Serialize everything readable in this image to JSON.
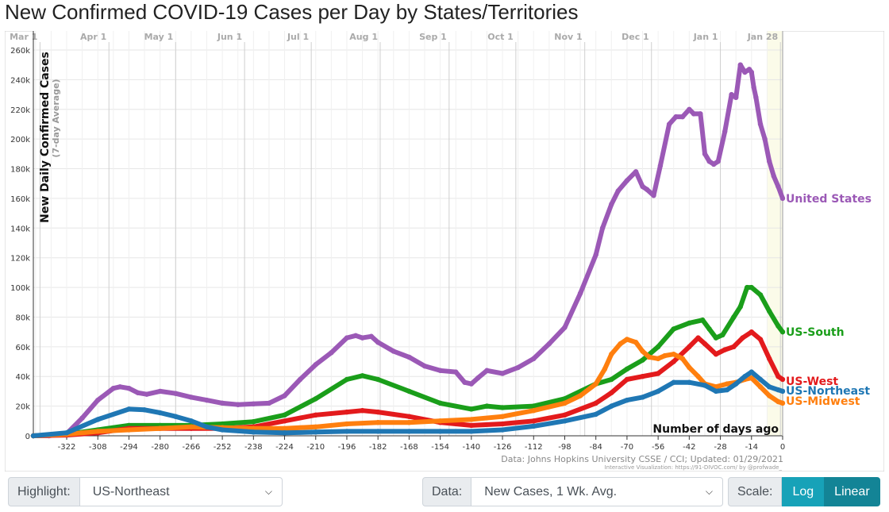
{
  "title": "New Confirmed COVID-19 Cases per Day by States/Territories",
  "chart_data": {
    "type": "line",
    "ylabel": "New Daily Confirmed Cases",
    "ylabel_sub": "(7-day Average)",
    "xlabel": "Number of days ago",
    "xlim": [
      -337,
      0
    ],
    "ylim": [
      0,
      260000
    ],
    "grid": true,
    "yticks": [
      0,
      20000,
      40000,
      60000,
      80000,
      100000,
      120000,
      140000,
      160000,
      180000,
      200000,
      220000,
      240000,
      260000
    ],
    "ytick_labels": [
      "0",
      "20k",
      "40k",
      "60k",
      "80k",
      "100k",
      "120k",
      "140k",
      "160k",
      "180k",
      "200k",
      "220k",
      "240k",
      "260k"
    ],
    "xticks": [
      -322,
      -308,
      -294,
      -280,
      -266,
      -252,
      -238,
      -224,
      -210,
      -196,
      -182,
      -168,
      -154,
      -140,
      -126,
      -112,
      -98,
      -84,
      -70,
      -56,
      -42,
      -28,
      -14,
      0
    ],
    "date_markers": [
      {
        "label": "Mar 1",
        "day": -334
      },
      {
        "label": "Apr 1",
        "day": -303
      },
      {
        "label": "May 1",
        "day": -273
      },
      {
        "label": "Jun 1",
        "day": -242
      },
      {
        "label": "Jul 1",
        "day": -212
      },
      {
        "label": "Aug 1",
        "day": -181
      },
      {
        "label": "Sep 1",
        "day": -150
      },
      {
        "label": "Oct 1",
        "day": -120
      },
      {
        "label": "Nov 1",
        "day": -89
      },
      {
        "label": "Dec 1",
        "day": -59
      },
      {
        "label": "Jan 1",
        "day": -28
      },
      {
        "label": "Jan 28",
        "day": -1
      }
    ],
    "series": [
      {
        "name": "United States",
        "color": "#9b59b6",
        "x": [
          -337,
          -330,
          -322,
          -315,
          -308,
          -301,
          -298,
          -294,
          -290,
          -286,
          -280,
          -273,
          -266,
          -259,
          -252,
          -245,
          -238,
          -231,
          -224,
          -217,
          -210,
          -203,
          -196,
          -192,
          -189,
          -185,
          -182,
          -175,
          -168,
          -161,
          -154,
          -147,
          -143,
          -140,
          -137,
          -133,
          -126,
          -119,
          -112,
          -105,
          -98,
          -91,
          -84,
          -81,
          -77,
          -74,
          -70,
          -66,
          -63,
          -61,
          -58,
          -55,
          -51,
          -48,
          -45,
          -42,
          -40,
          -37,
          -35,
          -33,
          -31,
          -29,
          -26,
          -23,
          -21,
          -19,
          -17,
          -15,
          -14,
          -13,
          -12,
          -10,
          -8,
          -6,
          -4,
          -2,
          0
        ],
        "y": [
          0,
          0,
          1500,
          12000,
          24000,
          32000,
          33000,
          32000,
          29000,
          28000,
          30000,
          28500,
          26000,
          24000,
          22000,
          21000,
          21500,
          22000,
          27000,
          38000,
          48000,
          56000,
          66000,
          67500,
          66000,
          67000,
          63000,
          57000,
          53000,
          47000,
          44000,
          43000,
          36000,
          35000,
          39000,
          44000,
          42000,
          46000,
          52000,
          62000,
          73000,
          96000,
          122000,
          140000,
          156000,
          165000,
          172000,
          178000,
          168000,
          166000,
          162000,
          182000,
          210000,
          215000,
          215000,
          220000,
          217000,
          217000,
          190000,
          185000,
          183000,
          185000,
          205000,
          230000,
          228000,
          250000,
          245000,
          247000,
          245000,
          235000,
          228000,
          210000,
          200000,
          185000,
          175000,
          168000,
          160000
        ]
      },
      {
        "name": "US-South",
        "color": "#1a9e1a",
        "x": [
          -337,
          -322,
          -308,
          -294,
          -280,
          -266,
          -252,
          -238,
          -224,
          -210,
          -196,
          -189,
          -182,
          -168,
          -154,
          -140,
          -133,
          -126,
          -112,
          -98,
          -84,
          -77,
          -70,
          -63,
          -56,
          -49,
          -42,
          -36,
          -33,
          -30,
          -27,
          -22,
          -19,
          -16,
          -14,
          -10,
          -6,
          -2,
          0
        ],
        "y": [
          0,
          1000,
          4000,
          7000,
          7000,
          7000,
          8000,
          9500,
          14000,
          25000,
          38000,
          40500,
          38000,
          30000,
          22000,
          18000,
          20000,
          19000,
          20000,
          25000,
          35000,
          38000,
          45000,
          51000,
          60000,
          72000,
          76000,
          78000,
          72000,
          66000,
          68000,
          80000,
          87000,
          100000,
          100000,
          95000,
          84000,
          74000,
          70000
        ]
      },
      {
        "name": "US-West",
        "color": "#e31a1c",
        "x": [
          -337,
          -322,
          -308,
          -294,
          -280,
          -266,
          -252,
          -238,
          -224,
          -210,
          -196,
          -189,
          -182,
          -168,
          -154,
          -140,
          -126,
          -112,
          -98,
          -84,
          -77,
          -70,
          -63,
          -56,
          -49,
          -42,
          -38,
          -35,
          -30,
          -26,
          -22,
          -18,
          -14,
          -10,
          -6,
          -2,
          0
        ],
        "y": [
          0,
          500,
          2000,
          5000,
          5000,
          5000,
          5000,
          6000,
          10000,
          14000,
          16000,
          17000,
          16000,
          13000,
          9000,
          7000,
          8000,
          10000,
          14000,
          22000,
          29000,
          38000,
          40000,
          42000,
          50000,
          60000,
          66000,
          62000,
          55000,
          58000,
          60000,
          66000,
          70000,
          65000,
          52000,
          40000,
          38000
        ]
      },
      {
        "name": "US-Northeast",
        "color": "#1f77b4",
        "x": [
          -337,
          -322,
          -308,
          -294,
          -287,
          -280,
          -273,
          -266,
          -259,
          -252,
          -238,
          -224,
          -210,
          -196,
          -182,
          -168,
          -154,
          -140,
          -126,
          -112,
          -98,
          -84,
          -77,
          -70,
          -63,
          -56,
          -49,
          -42,
          -35,
          -30,
          -25,
          -21,
          -17,
          -14,
          -10,
          -6,
          -2,
          0
        ],
        "y": [
          0,
          2000,
          11000,
          18000,
          17500,
          15500,
          13000,
          10000,
          6000,
          4000,
          2500,
          2000,
          2500,
          3000,
          3000,
          3000,
          3000,
          3000,
          4000,
          6500,
          10000,
          14500,
          20000,
          24000,
          26000,
          30000,
          36000,
          36000,
          34000,
          30000,
          31000,
          35000,
          40000,
          43000,
          38000,
          33000,
          31000,
          30000
        ]
      },
      {
        "name": "US-Midwest",
        "color": "#ff7f0e",
        "x": [
          -337,
          -322,
          -308,
          -294,
          -280,
          -266,
          -252,
          -238,
          -224,
          -210,
          -196,
          -182,
          -168,
          -154,
          -140,
          -126,
          -112,
          -98,
          -91,
          -84,
          -80,
          -77,
          -73,
          -70,
          -66,
          -63,
          -60,
          -56,
          -53,
          -49,
          -45,
          -42,
          -38,
          -35,
          -30,
          -25,
          -21,
          -17,
          -14,
          -10,
          -6,
          -2,
          0
        ],
        "y": [
          0,
          1000,
          3000,
          4000,
          5000,
          6000,
          5500,
          5000,
          5000,
          6000,
          8000,
          9000,
          9000,
          10000,
          11000,
          13000,
          17000,
          22000,
          27000,
          35000,
          45000,
          55000,
          62000,
          65000,
          63000,
          57000,
          53000,
          52000,
          54000,
          55000,
          52000,
          46000,
          40000,
          35000,
          33000,
          35000,
          36000,
          38000,
          39000,
          33000,
          27000,
          23000,
          22000
        ]
      }
    ]
  },
  "source_text": "Data: Johns Hopkins University CSSE / CCI; Updated: 01/29/2021",
  "credit_text": "Interactive Visualization: https://91-DIVOC.com/ by @profwade_",
  "controls": {
    "highlight_label": "Highlight:",
    "highlight_value": "US-Northeast",
    "data_label": "Data:",
    "data_value": "New Cases, 1 Wk. Avg.",
    "scale_label": "Scale:",
    "log_label": "Log",
    "linear_label": "Linear"
  }
}
